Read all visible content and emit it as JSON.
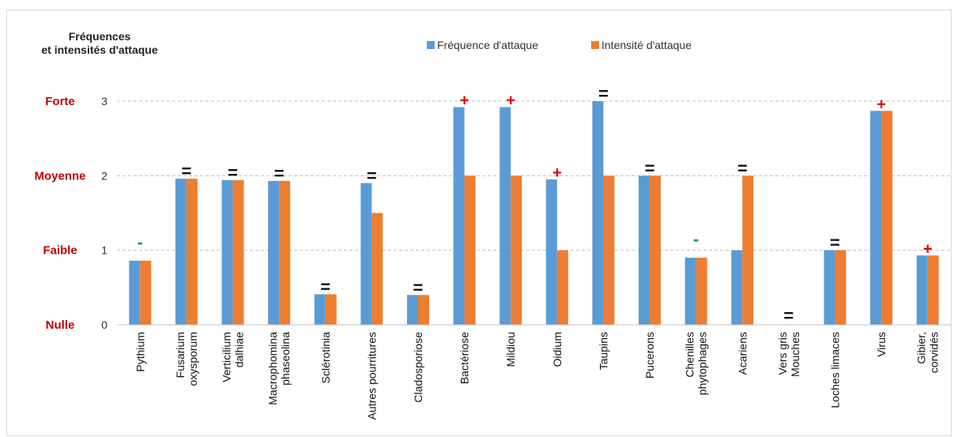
{
  "chart_data": {
    "type": "bar",
    "title": "",
    "ylabel_lines": [
      "Fréquences",
      "et intensités d'attaque"
    ],
    "ylim": [
      0,
      3
    ],
    "y_ticks": [
      "0",
      "1",
      "2",
      "3"
    ],
    "y_level_labels": [
      "Nulle",
      "Faible",
      "Moyenne",
      "Forte"
    ],
    "grid": "horizontal dashed",
    "legend_placement": "top-center",
    "categories": [
      [
        "Pythium"
      ],
      [
        "Fusarium",
        "oxysporum"
      ],
      [
        "Verticilium",
        "dalhiae"
      ],
      [
        "Macrophomina",
        "phaseolina"
      ],
      [
        "Sclérotinia"
      ],
      [
        "Autres pourritures"
      ],
      [
        "Cladosporiose"
      ],
      [
        "Bactériose"
      ],
      [
        "Mildiou"
      ],
      [
        "Oidium"
      ],
      [
        "Taupins"
      ],
      [
        "Pucerons"
      ],
      [
        "Chenilles",
        "phytophages"
      ],
      [
        "Acariens"
      ],
      [
        "Vers gris",
        "Mouches"
      ],
      [
        "Loches limaces"
      ],
      [
        "Virus"
      ],
      [
        "Gibier,",
        "corvidés"
      ]
    ],
    "series": [
      {
        "name": "Fréquence d'attaque",
        "color": "#5b9bd5",
        "values": [
          0.86,
          1.96,
          1.94,
          1.93,
          0.41,
          1.9,
          0.4,
          2.92,
          2.92,
          1.95,
          3.0,
          2.0,
          0.9,
          1.0,
          0,
          1.0,
          2.87,
          0.93
        ]
      },
      {
        "name": "Intensité d'attaque",
        "color": "#ed7d31",
        "values": [
          0.86,
          1.96,
          1.94,
          1.93,
          0.41,
          1.5,
          0.4,
          2.0,
          2.0,
          1.0,
          2.0,
          2.0,
          0.9,
          2.0,
          0,
          1.0,
          2.87,
          0.93
        ]
      }
    ],
    "trend_markers": [
      "-",
      "=",
      "=",
      "=",
      "=",
      "=",
      "=",
      "+",
      "+",
      "+",
      "=",
      "=",
      "-",
      "=",
      "=",
      "=",
      "+",
      "+"
    ],
    "marker_colors": {
      "+": "#e00000",
      "=": "#111111",
      "-": "#00a050"
    }
  }
}
